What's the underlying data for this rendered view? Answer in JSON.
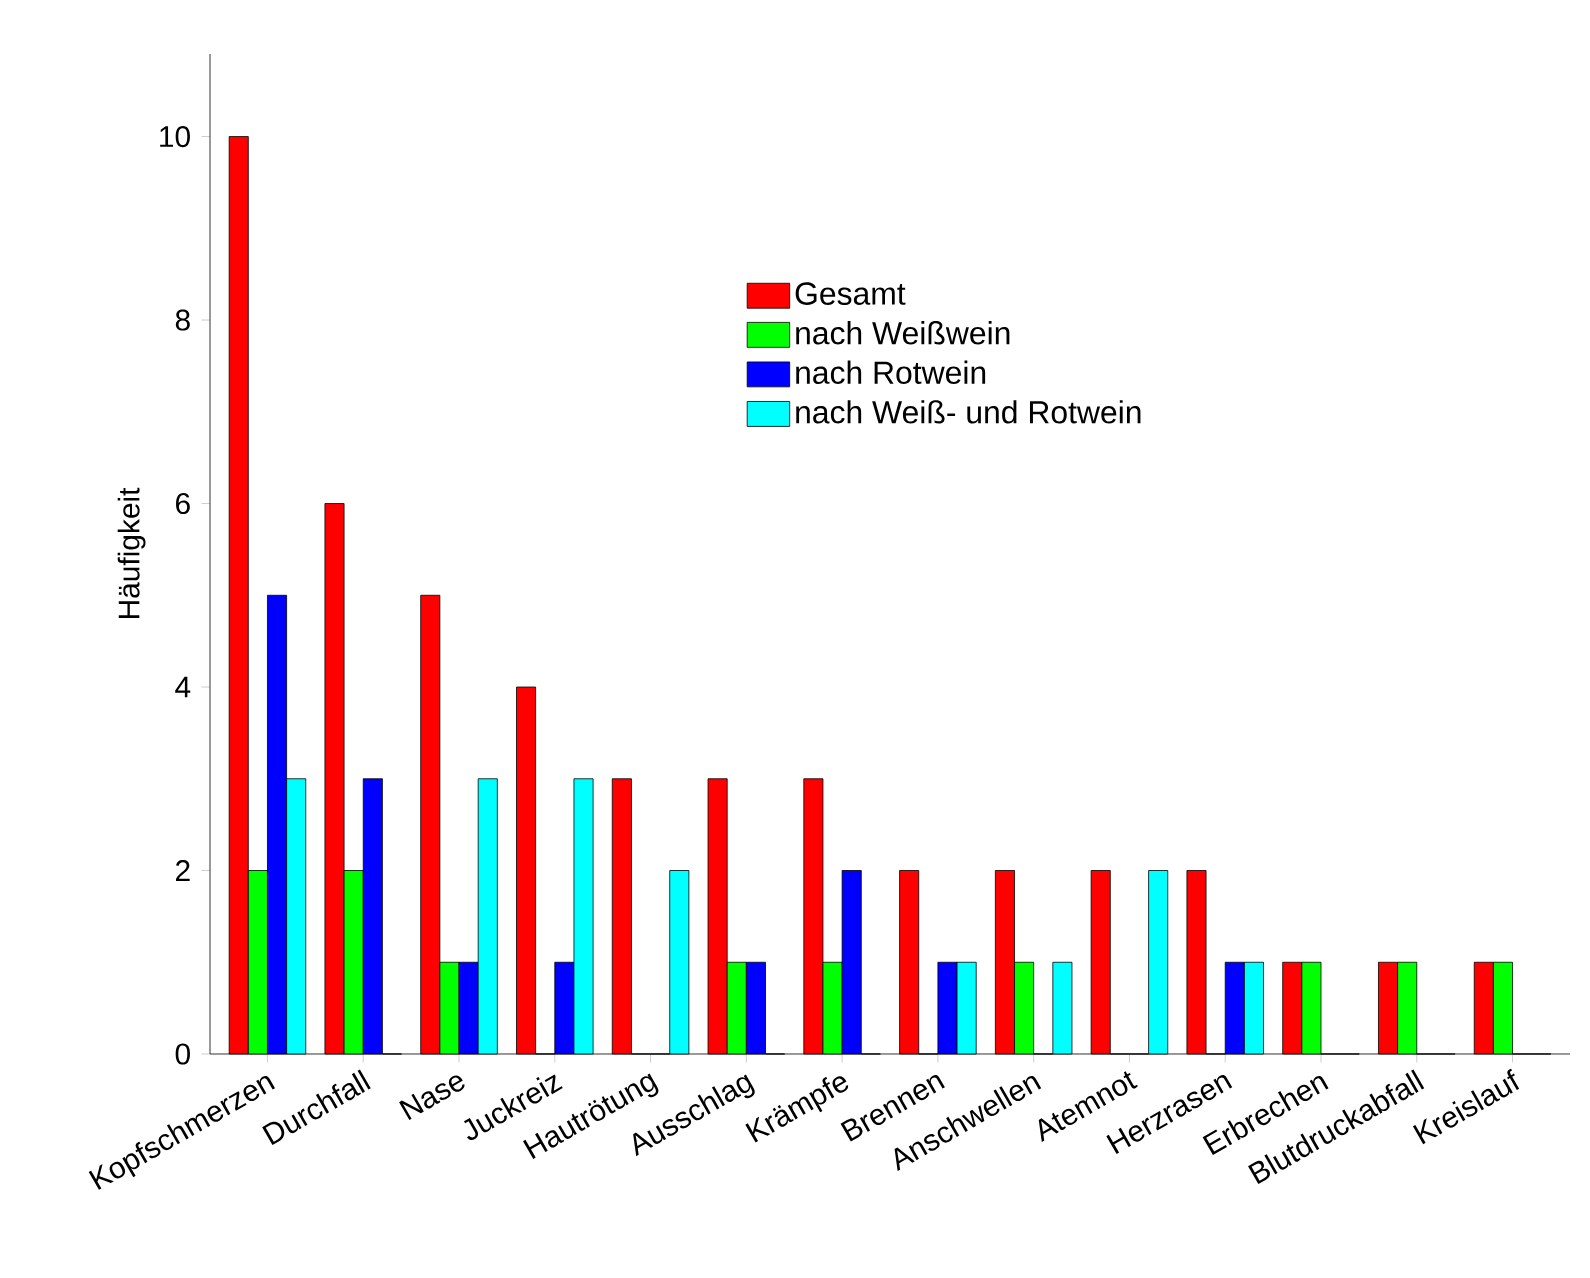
{
  "chart_data": {
    "type": "bar",
    "ylabel": "Häufigkeit",
    "categories": [
      "Kopfschmerzen",
      "Durchfall",
      "Nase",
      "Juckreiz",
      "Hautrötung",
      "Ausschlag",
      "Krämpfe",
      "Brennen",
      "Anschwellen",
      "Atemnot",
      "Herzrasen",
      "Erbrechen",
      "Blutdruckabfall",
      "Kreislauf"
    ],
    "series": [
      {
        "name": "Gesamt",
        "color": "#ff0000",
        "values": [
          10,
          6,
          5,
          4,
          3,
          3,
          3,
          2,
          2,
          2,
          2,
          1,
          1,
          1
        ]
      },
      {
        "name": "nach Weißwein",
        "color": "#00ff00",
        "values": [
          2,
          2,
          1,
          0,
          0,
          1,
          1,
          0,
          1,
          0,
          0,
          1,
          1,
          1
        ]
      },
      {
        "name": "nach Rotwein",
        "color": "#0000ff",
        "values": [
          5,
          3,
          1,
          1,
          0,
          1,
          2,
          1,
          0,
          0,
          1,
          0,
          0,
          0
        ]
      },
      {
        "name": "nach Weiß- und Rotwein",
        "color": "#00ffff",
        "values": [
          3,
          0,
          3,
          3,
          2,
          0,
          0,
          1,
          1,
          2,
          1,
          0,
          0,
          0
        ]
      }
    ],
    "ylim": [
      0,
      10.9
    ],
    "yticks": [
      0,
      2,
      4,
      6,
      8,
      10
    ],
    "grid": false,
    "legend": "top right"
  }
}
